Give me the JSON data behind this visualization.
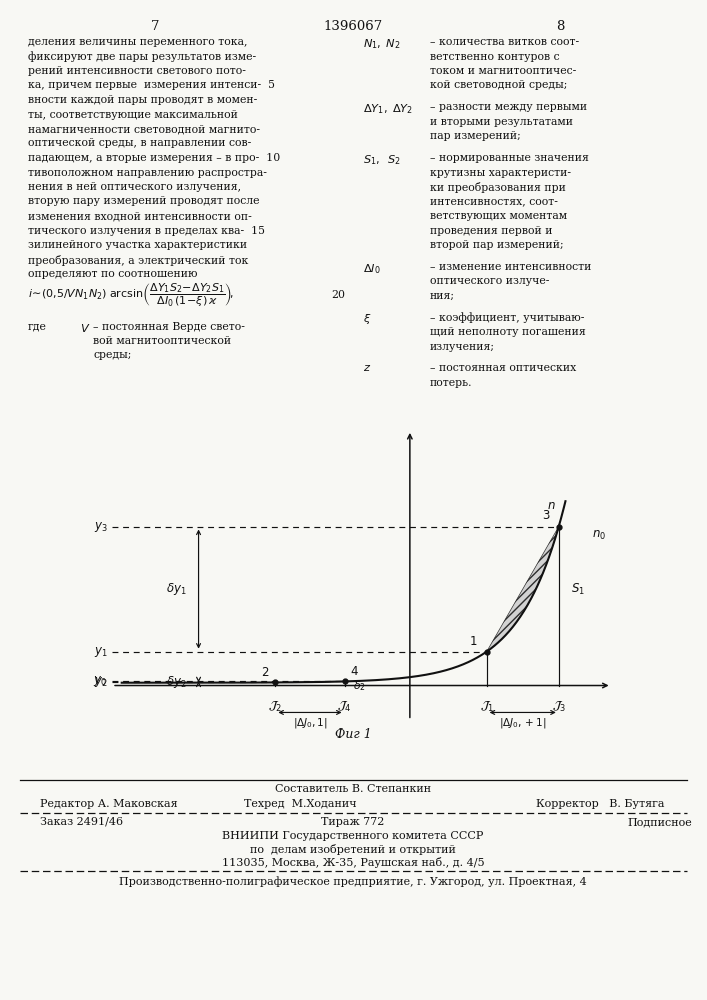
{
  "page_number_left": "7",
  "page_number_center": "1396067",
  "page_number_right": "8",
  "bg_color": "#f8f8f4",
  "text_color": "#111111",
  "left_col_text": [
    "деления величины переменного тока,",
    "фиксируют две пары результатов изме-",
    "рений интенсивности светового пото-",
    "ка, причем первые  измерения интенси-  5",
    "вности каждой пары проводят в момен-",
    "ты, соответствующие максимальной",
    "намагниченности световодной магнито-",
    "оптической среды, в направлении сов-",
    "падающем, а вторые измерения – в про-  10",
    "тивоположном направлению распростра-",
    "нения в ней оптического излучения,",
    "вторую пару измерений проводят после",
    "изменения входной интенсивности оп-",
    "тического излучения в пределах ква-  15",
    "зилинейного участка характеристики",
    "преобразования, а электрический ток",
    "определяют по соотношению"
  ],
  "right_col_items": [
    {
      "symbol": "$N_1,\\;N_2$",
      "desc": "– количества витков соот-\nветственно контуров с\nтоком и магнитооптичес-\nкой световодной среды;"
    },
    {
      "symbol": "$\\Delta Y_1,\\;\\Delta Y_2$",
      "desc": "– разности между первыми\nи вторыми результатами\nпар измерений;"
    },
    {
      "symbol": "$S_1,\\;\\;S_2$",
      "desc": "– нормированные значения\nкрутизны характеристи-\nки преобразования при\nинтенсивностях, соот-\nветствующих моментам\nпроведения первой и\nвторой пар измерений;"
    },
    {
      "symbol": "$\\Delta I_0$",
      "desc": "– изменение интенсивности\nоптического излуче-\nния;"
    },
    {
      "symbol": "$\\xi$",
      "desc": "– коэффициент, учитываю-\nщий неполноту погашения\nизлучения;"
    },
    {
      "symbol": "$z$",
      "desc": "– постоянная оптических\nпотерь."
    }
  ],
  "fig_caption": "Фиг 1",
  "footer_composer": "Составитель В. Степанкин",
  "footer_editor": "Редактор А. Маковская",
  "footer_tech": "Техред  М.Ходанич",
  "footer_corrector": "Корректор   В. Бутяга",
  "footer_order": "Заказ 2491/46",
  "footer_print": "Тираж 772",
  "footer_subscription": "Подписное",
  "footer_org1": "ВНИИПИ Государственного комитета СССР",
  "footer_org2": "по  делам изобретений и открытий",
  "footer_org3": "113035, Москва, Ж-35, Раушская наб., д. 4/5",
  "footer_company": "Производственно-полиграфическое предприятие, г. Ужгород, ул. Проектная, 4"
}
